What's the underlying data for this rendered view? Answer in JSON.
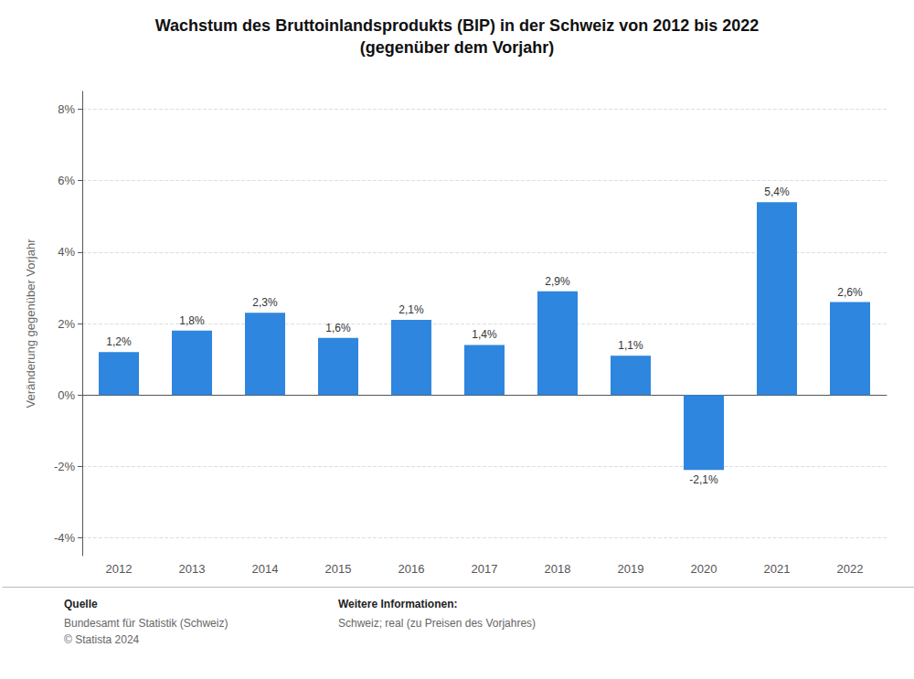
{
  "chart_data": {
    "type": "bar",
    "title": "Wachstum des Bruttoinlandsprodukts (BIP) in der Schweiz von 2012 bis 2022",
    "subtitle": "(gegenüber dem Vorjahr)",
    "ylabel": "Veränderung gegenüber Vorjahr",
    "categories": [
      "2012",
      "2013",
      "2014",
      "2015",
      "2016",
      "2017",
      "2018",
      "2019",
      "2020",
      "2021",
      "2022"
    ],
    "values": [
      1.2,
      1.8,
      2.3,
      1.6,
      2.1,
      1.4,
      2.9,
      1.1,
      -2.1,
      5.4,
      2.6
    ],
    "value_labels": [
      "1,2%",
      "1,8%",
      "2,3%",
      "1,6%",
      "2,1%",
      "1,4%",
      "2,9%",
      "1,1%",
      "-2,1%",
      "5,4%",
      "2,6%"
    ],
    "color": "#2E86DE",
    "ylim": [
      -4.5,
      8.5
    ],
    "yticks": [
      {
        "value": -4,
        "label": "-4%"
      },
      {
        "value": -2,
        "label": "-2%"
      },
      {
        "value": 0,
        "label": "0%"
      },
      {
        "value": 2,
        "label": "2%"
      },
      {
        "value": 4,
        "label": "4%"
      },
      {
        "value": 6,
        "label": "6%"
      },
      {
        "value": 8,
        "label": "8%"
      }
    ],
    "grid": true,
    "data_labels": true,
    "annotations": [
      {
        "heading": "Quelle",
        "lines": [
          "Bundesamt für Statistik (Schweiz)",
          "© Statista 2024"
        ]
      },
      {
        "heading": "Weitere Informationen:",
        "lines": [
          "Schweiz; real (zu Preisen des Vorjahres)"
        ]
      }
    ]
  }
}
